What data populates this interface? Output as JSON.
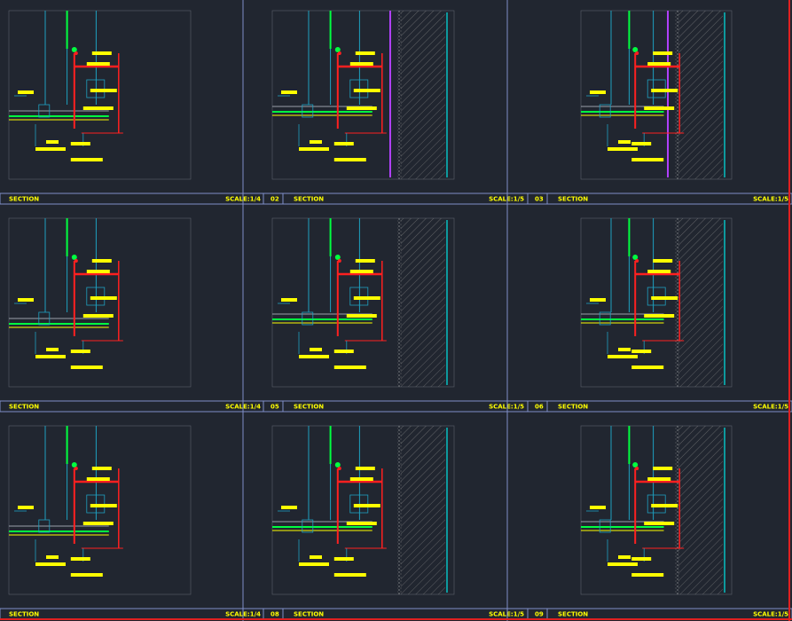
{
  "panels": [
    {
      "title": "SECTION",
      "scale": "SCALE:1/4"
    },
    {
      "number": "02",
      "title": "SECTION",
      "scale": "SCALE:1/5"
    },
    {
      "number": "03",
      "title": "SECTION",
      "scale": "SCALE:1/5"
    },
    {
      "title": "SECTION",
      "scale": "SCALE:1/4"
    },
    {
      "number": "05",
      "title": "SECTION",
      "scale": "SCALE:1/5"
    },
    {
      "number": "06",
      "title": "SECTION",
      "scale": "SCALE:1/5"
    },
    {
      "title": "SECTION",
      "scale": "SCALE:1/4"
    },
    {
      "number": "08",
      "title": "SECTION",
      "scale": "SCALE:1/5"
    },
    {
      "number": "09",
      "title": "SECTION",
      "scale": "SCALE:1/5"
    }
  ]
}
